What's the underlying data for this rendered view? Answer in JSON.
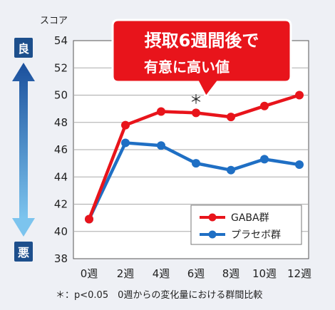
{
  "chart_data": {
    "type": "line",
    "title": "",
    "ylabel": "スコア",
    "xlabel": "",
    "categories": [
      "0週",
      "2週",
      "4週",
      "6週",
      "8週",
      "10週",
      "12週"
    ],
    "ylim": [
      38,
      54
    ],
    "yticks": [
      38,
      40,
      42,
      44,
      46,
      48,
      50,
      52,
      54
    ],
    "grid": true,
    "legend_position": "bottom-right",
    "series": [
      {
        "name": "GABA群",
        "color": "#e8141b",
        "values": [
          40.9,
          47.8,
          48.8,
          48.7,
          48.4,
          49.2,
          50.0
        ]
      },
      {
        "name": "プラセボ群",
        "color": "#1f6fc4",
        "values": [
          40.9,
          46.5,
          46.3,
          45.0,
          44.5,
          45.3,
          44.9
        ]
      }
    ],
    "annotation": {
      "text": "＊",
      "category_index": 3
    },
    "callout": {
      "line1": "摂取6週間後で",
      "line2": "有意に高い値",
      "color": "#e8141b"
    },
    "side_labels": {
      "top": "良",
      "bottom": "悪",
      "color": "#1d4f8c"
    },
    "footnote": "＊：p<0.05　0週からの変化量における群間比較"
  }
}
